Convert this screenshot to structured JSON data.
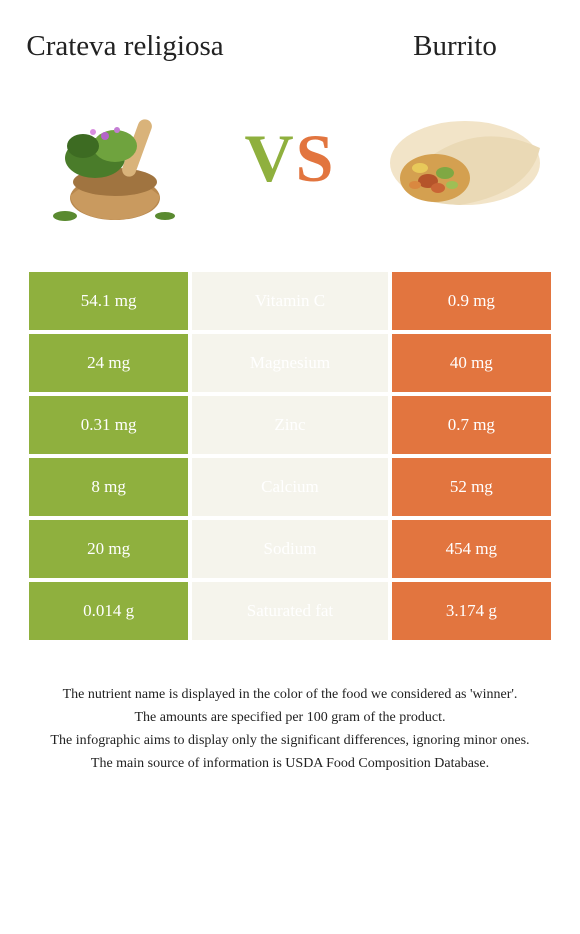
{
  "left_food": {
    "title": "Crateva religiosa"
  },
  "right_food": {
    "title": "Burrito"
  },
  "vs": {
    "v": "V",
    "s": "S"
  },
  "colors": {
    "left": "#8fb03e",
    "right": "#e2753f",
    "mid_bg": "#f5f4ec"
  },
  "rows": [
    {
      "left": "54.1 mg",
      "label": "Vitamin C",
      "right": "0.9 mg",
      "winner": "left"
    },
    {
      "left": "24 mg",
      "label": "Magnesium",
      "right": "40 mg",
      "winner": "right"
    },
    {
      "left": "0.31 mg",
      "label": "Zinc",
      "right": "0.7 mg",
      "winner": "right"
    },
    {
      "left": "8 mg",
      "label": "Calcium",
      "right": "52 mg",
      "winner": "right"
    },
    {
      "left": "20 mg",
      "label": "Sodium",
      "right": "454 mg",
      "winner": "right"
    },
    {
      "left": "0.014 g",
      "label": "Saturated fat",
      "right": "3.174 g",
      "winner": "right"
    }
  ],
  "footnotes": [
    "The nutrient name is displayed in the color of the food we considered as 'winner'.",
    "The amounts are specified per 100 gram of the product.",
    "The infographic aims to display only the significant differences, ignoring minor ones.",
    "The main source of information is USDA Food Composition Database."
  ]
}
